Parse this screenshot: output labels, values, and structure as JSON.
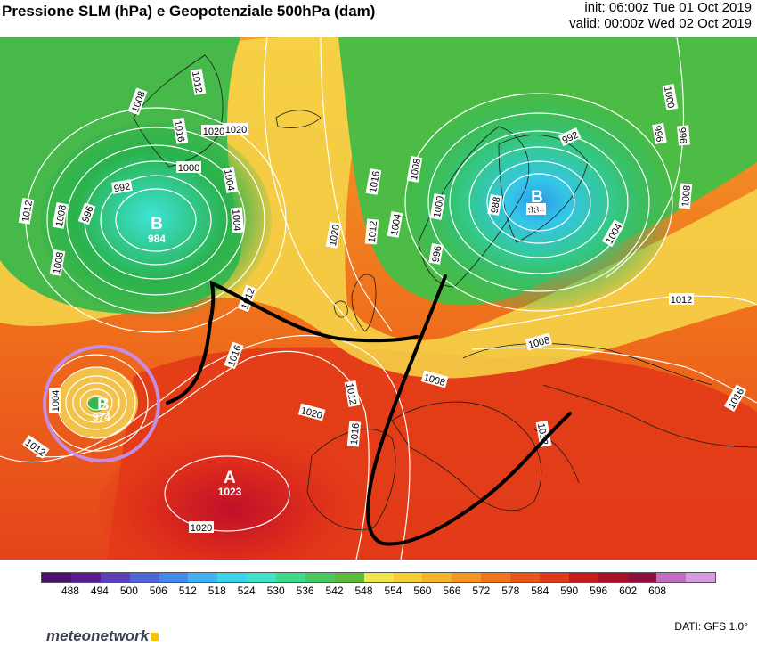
{
  "header": {
    "title": "Pressione SLM (hPa) e Geopotenziale 500hPa (dam)",
    "init": "init: 06:00z Tue 01 Oct 2019",
    "valid": "valid: 00:00z Wed 02 Oct 2019"
  },
  "pressure_centers": [
    {
      "type": "B",
      "value": "984"
    },
    {
      "type": "B",
      "value": "984"
    },
    {
      "type": "B",
      "value": "974"
    },
    {
      "type": "A",
      "value": "1023"
    }
  ],
  "isobar_labels": [
    "1008",
    "1012",
    "1016",
    "1020",
    "992",
    "996",
    "1000",
    "1004",
    "1008",
    "1004",
    "1012",
    "1008",
    "1004",
    "1016",
    "1012",
    "1020",
    "1020",
    "1016",
    "1012",
    "1008",
    "1004",
    "1000",
    "996",
    "996",
    "992",
    "988",
    "984",
    "1000",
    "996",
    "1008",
    "1004",
    "1012",
    "1008",
    "1008",
    "1016",
    "1012",
    "1004",
    "1012",
    "1016",
    "1020",
    "1020",
    "1012"
  ],
  "colorbar": {
    "labels": [
      "488",
      "494",
      "500",
      "506",
      "512",
      "518",
      "524",
      "530",
      "536",
      "542",
      "548",
      "554",
      "560",
      "566",
      "572",
      "578",
      "584",
      "590",
      "596",
      "602",
      "608"
    ],
    "colors": [
      "#4b0f6e",
      "#5a1c95",
      "#5d3fc0",
      "#4f66d8",
      "#3f8cec",
      "#3fb2f5",
      "#3ad3ef",
      "#3fe2c8",
      "#3fd98c",
      "#46c85a",
      "#5cbd3a",
      "#f2e64a",
      "#f7ce33",
      "#f8b327",
      "#f79520",
      "#f2751a",
      "#e95718",
      "#e03a17",
      "#c9191c",
      "#a8102a",
      "#8e0d3d",
      "#c46cc5",
      "#d89be1"
    ]
  },
  "footer": {
    "data_source": "DATI: GFS 1.0°",
    "logo": "meteonetwork"
  },
  "colors": {
    "front_line": "#000000",
    "highlight_circle": "#c88ce0",
    "isobar": "#ffffff"
  }
}
